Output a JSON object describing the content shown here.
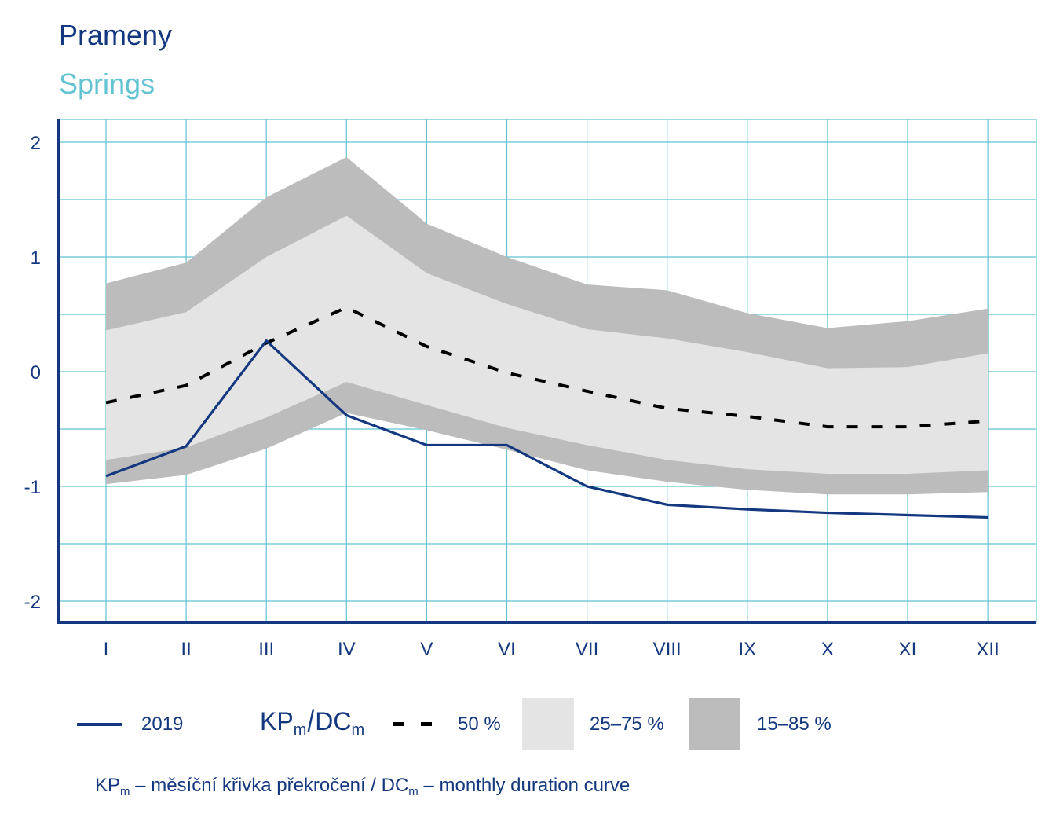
{
  "header": {
    "title": "Prameny",
    "subtitle": "Springs"
  },
  "colors": {
    "title": "#14387f",
    "subtitle": "#62c3d2",
    "grid": "#62c3d2",
    "axis": "#14387f",
    "line_2019": "#14387f",
    "median": "#000000",
    "band_25_75": "#e4e4e4",
    "band_15_85": "#bcbcbc"
  },
  "legend": {
    "year_label": "2019",
    "kp_main": "KP",
    "kp_sub": "m",
    "slash": "/",
    "dc_main": "DC",
    "dc_sub": "m",
    "median_label": "50 %",
    "band_inner_label": "25–75 %",
    "band_outer_label": "15–85 %"
  },
  "note": {
    "kp_main": "KP",
    "kp_sub": "m",
    "text_cz": " – měsíční křivka překročení / ",
    "dc_main": "DC",
    "dc_sub": "m",
    "text_en": " – monthly duration curve"
  },
  "chart_data": {
    "type": "line",
    "title": "Prameny",
    "subtitle": "Springs",
    "xlabel": "",
    "ylabel": "",
    "categories": [
      "I",
      "II",
      "III",
      "IV",
      "V",
      "VI",
      "VII",
      "VIII",
      "IX",
      "X",
      "XI",
      "XII"
    ],
    "ylim": [
      -2.2,
      2.2
    ],
    "yticks": [
      -2,
      -1,
      0,
      1,
      2
    ],
    "ytick_labels": [
      "-2",
      "-1",
      "0",
      "1",
      "2"
    ],
    "grid": true,
    "grid_step": 0.5,
    "legend_position": "bottom",
    "series": [
      {
        "name": "2019",
        "style": "solid",
        "values": [
          -0.91,
          -0.65,
          0.27,
          -0.38,
          -0.64,
          -0.64,
          -1.0,
          -1.16,
          -1.2,
          -1.23,
          -1.25,
          -1.27
        ]
      },
      {
        "name": "50 %",
        "style": "dashed",
        "values": [
          -0.27,
          -0.12,
          0.25,
          0.56,
          0.22,
          -0.01,
          -0.17,
          -0.32,
          -0.39,
          -0.48,
          -0.48,
          -0.43
        ]
      }
    ],
    "bands": [
      {
        "name": "15–85 %",
        "lower": [
          -0.98,
          -0.9,
          -0.67,
          -0.36,
          -0.51,
          -0.68,
          -0.86,
          -0.96,
          -1.03,
          -1.07,
          -1.07,
          -1.05
        ],
        "upper": [
          0.77,
          0.95,
          1.52,
          1.87,
          1.29,
          1.0,
          0.76,
          0.71,
          0.51,
          0.38,
          0.44,
          0.55
        ]
      },
      {
        "name": "25–75 %",
        "lower": [
          -0.77,
          -0.66,
          -0.4,
          -0.09,
          -0.29,
          -0.49,
          -0.64,
          -0.77,
          -0.85,
          -0.89,
          -0.89,
          -0.86
        ],
        "upper": [
          0.36,
          0.52,
          1.0,
          1.36,
          0.86,
          0.59,
          0.37,
          0.29,
          0.17,
          0.03,
          0.04,
          0.16
        ]
      }
    ]
  }
}
